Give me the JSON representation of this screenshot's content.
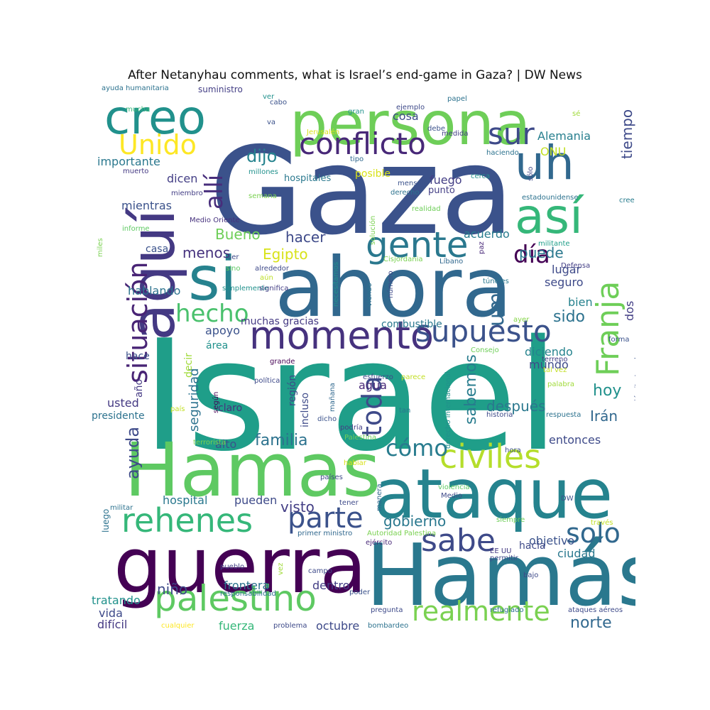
{
  "title": "After Netanyhau comments, what is Israel’s end-game in Gaza? | DW News",
  "words": [
    {
      "text": "Israel",
      "color": "#1f9e89"
    },
    {
      "text": "Gaza",
      "color": "#3b528b"
    },
    {
      "text": "persona",
      "color": "#6ece58"
    },
    {
      "text": "creo",
      "color": "#21918c"
    },
    {
      "text": "uh",
      "color": "#31688e"
    },
    {
      "text": "así",
      "color": "#35b779"
    },
    {
      "text": "ahora",
      "color": "#31688e"
    },
    {
      "text": "si",
      "color": "#26828e"
    },
    {
      "text": "aquí",
      "color": "#443983"
    },
    {
      "text": "Hamas",
      "color": "#5ec962"
    },
    {
      "text": "ataque",
      "color": "#25838e"
    },
    {
      "text": "Hamás",
      "color": "#2a788e"
    },
    {
      "text": "guerra",
      "color": "#440154"
    },
    {
      "text": "momento",
      "color": "#46327e"
    },
    {
      "text": "supuesto",
      "color": "#3b528b"
    },
    {
      "text": "gente",
      "color": "#2a788e"
    },
    {
      "text": "conflicto",
      "color": "#482878"
    },
    {
      "text": "sur",
      "color": "#3e4a89"
    },
    {
      "text": "Unido",
      "color": "#fde725"
    },
    {
      "text": "situación",
      "color": "#482475"
    },
    {
      "text": "Franja",
      "color": "#6ece58"
    },
    {
      "text": "rehenes",
      "color": "#35b779"
    },
    {
      "text": "palestino",
      "color": "#5ec962"
    },
    {
      "text": "civiles",
      "color": "#b5de2b"
    },
    {
      "text": "realmente",
      "color": "#7ad151"
    },
    {
      "text": "parte",
      "color": "#3b528b"
    },
    {
      "text": "sabe",
      "color": "#3e4a89"
    },
    {
      "text": "solo",
      "color": "#31688e"
    },
    {
      "text": "hecho",
      "color": "#4ac16d"
    },
    {
      "text": "día",
      "color": "#440154"
    },
    {
      "text": "toda",
      "color": "#3e4a89"
    },
    {
      "text": "cómo",
      "color": "#287c8e"
    },
    {
      "text": "allí",
      "color": "#472d7b"
    },
    {
      "text": "um",
      "color": "#31688e"
    },
    {
      "text": "dijo",
      "color": "#25838e"
    },
    {
      "text": "tiempo",
      "color": "#3e4a89"
    },
    {
      "text": "todavía",
      "color": "#472d7b"
    },
    {
      "text": "Alemania",
      "color": "#277f8e"
    },
    {
      "text": "ONU",
      "color": "#c2df23"
    },
    {
      "text": "importante",
      "color": "#2a788e"
    },
    {
      "text": "dicen",
      "color": "#433e85"
    },
    {
      "text": "mientras",
      "color": "#3b528b"
    },
    {
      "text": "Bueno",
      "color": "#6ece58"
    },
    {
      "text": "hacer",
      "color": "#3e4a89"
    },
    {
      "text": "menos",
      "color": "#46327e"
    },
    {
      "text": "Egipto",
      "color": "#d8e219"
    },
    {
      "text": "casa",
      "color": "#3b528b"
    },
    {
      "text": "acuerdo",
      "color": "#287c8e"
    },
    {
      "text": "puede",
      "color": "#2a788e"
    },
    {
      "text": "fuego",
      "color": "#433e85"
    },
    {
      "text": "posible",
      "color": "#d8e219"
    },
    {
      "text": "cosa",
      "color": "#3e4a89"
    },
    {
      "text": "hospitales",
      "color": "#2a788e"
    },
    {
      "text": "punto",
      "color": "#433e85"
    },
    {
      "text": "hablando",
      "color": "#2c728e"
    },
    {
      "text": "seguridad",
      "color": "#2c728e"
    },
    {
      "text": "muchas gracias",
      "color": "#443983"
    },
    {
      "text": "combustible",
      "color": "#2a788e"
    },
    {
      "text": "apoyo",
      "color": "#3b528b"
    },
    {
      "text": "área",
      "color": "#21918c"
    },
    {
      "text": "lugar",
      "color": "#3e4a89"
    },
    {
      "text": "seguro",
      "color": "#3e4a89"
    },
    {
      "text": "bien",
      "color": "#26828e"
    },
    {
      "text": "sido",
      "color": "#2c728e"
    },
    {
      "text": "dos",
      "color": "#433e85"
    },
    {
      "text": "diciendo",
      "color": "#25838e"
    },
    {
      "text": "mundo",
      "color": "#3e4a89"
    },
    {
      "text": "hoy",
      "color": "#21918c"
    },
    {
      "text": "sabemos",
      "color": "#287c8e"
    },
    {
      "text": "después",
      "color": "#2a788e"
    },
    {
      "text": "Irán",
      "color": "#31688e"
    },
    {
      "text": "ayuda",
      "color": "#3e4a89"
    },
    {
      "text": "familia",
      "color": "#2c728e"
    },
    {
      "text": "alto",
      "color": "#3b528b"
    },
    {
      "text": "visto",
      "color": "#433e85"
    },
    {
      "text": "gobierno",
      "color": "#2a788e"
    },
    {
      "text": "objetivo",
      "color": "#3b528b"
    },
    {
      "text": "hacia",
      "color": "#3e4a89"
    },
    {
      "text": "ciudad",
      "color": "#2a788e"
    },
    {
      "text": "entonces",
      "color": "#3e4a89"
    },
    {
      "text": "hospital",
      "color": "#2a788e"
    },
    {
      "text": "pueden",
      "color": "#3e4a89"
    },
    {
      "text": "niño",
      "color": "#3e4a89"
    },
    {
      "text": "frontera",
      "color": "#2c728e"
    },
    {
      "text": "dentro",
      "color": "#433e85"
    },
    {
      "text": "tratando",
      "color": "#21918c"
    },
    {
      "text": "vida",
      "color": "#3e4a89"
    },
    {
      "text": "difícil",
      "color": "#443983"
    },
    {
      "text": "fuerza",
      "color": "#35b779"
    },
    {
      "text": "octubre",
      "color": "#3e4a89"
    },
    {
      "text": "norte",
      "color": "#31688e"
    },
    {
      "text": "agua",
      "color": "#482878"
    },
    {
      "text": "claro",
      "color": "#46327e"
    },
    {
      "text": "usted",
      "color": "#443983"
    },
    {
      "text": "presidente",
      "color": "#2c728e"
    },
    {
      "text": "hace",
      "color": "#3b528b"
    },
    {
      "text": "decir",
      "color": "#a0da39"
    },
    {
      "text": "año",
      "color": "#443983"
    },
    {
      "text": "región",
      "color": "#3e4a89"
    },
    {
      "text": "incluso",
      "color": "#3e4a89"
    },
    {
      "text": "quiero decir",
      "color": "#c2df23"
    },
    {
      "text": "luego",
      "color": "#2c728e"
    },
    {
      "text": "ayuda humanitaria",
      "color": "#2c728e"
    },
    {
      "text": "suministro",
      "color": "#433e85"
    },
    {
      "text": "mucha",
      "color": "#35b779"
    },
    {
      "text": "muerto",
      "color": "#443983"
    },
    {
      "text": "miembro",
      "color": "#433e85"
    },
    {
      "text": "Medio Oriente",
      "color": "#46327e"
    },
    {
      "text": "informe",
      "color": "#5ec962"
    },
    {
      "text": "millones",
      "color": "#21918c"
    },
    {
      "text": "semana",
      "color": "#7ad151"
    },
    {
      "text": "solución",
      "color": "#7ad151"
    },
    {
      "text": "mensaje",
      "color": "#3b528b"
    },
    {
      "text": "derecho",
      "color": "#2c728e"
    },
    {
      "text": "realidad",
      "color": "#6ece58"
    },
    {
      "text": "tipo",
      "color": "#31688e"
    },
    {
      "text": "cerca",
      "color": "#21918c"
    },
    {
      "text": "sólo",
      "color": "#3e4a89"
    },
    {
      "text": "estadounidense",
      "color": "#2c728e"
    },
    {
      "text": "cree",
      "color": "#287c8e"
    },
    {
      "text": "militante",
      "color": "#1f9e89"
    },
    {
      "text": "paz",
      "color": "#482878"
    },
    {
      "text": "Líbano",
      "color": "#31688e"
    },
    {
      "text": "Cisjordania",
      "color": "#7ad151"
    },
    {
      "text": "Defensa",
      "color": "#433e85"
    },
    {
      "text": "túneles",
      "color": "#2a788e"
    },
    {
      "text": "ayer",
      "color": "#86d549"
    },
    {
      "text": "forma",
      "color": "#3b528b"
    },
    {
      "text": "ejército Israel",
      "color": "#3b528b"
    },
    {
      "text": "tal vez",
      "color": "#c2df23"
    },
    {
      "text": "palabra",
      "color": "#a0da39"
    },
    {
      "text": "terreno",
      "color": "#433e85"
    },
    {
      "text": "historia",
      "color": "#3e4a89"
    },
    {
      "text": "respuesta",
      "color": "#2c728e"
    },
    {
      "text": "necesitamos",
      "color": "#21918c"
    },
    {
      "text": "viendo",
      "color": "#2c728e"
    },
    {
      "text": "número",
      "color": "#3e4a89"
    },
    {
      "text": "ser",
      "color": "#3e4a89"
    },
    {
      "text": "sino",
      "color": "#5ec962"
    },
    {
      "text": "alrededor",
      "color": "#3e4a89"
    },
    {
      "text": "aún",
      "color": "#bddf26"
    },
    {
      "text": "simplemente",
      "color": "#21918c"
    },
    {
      "text": "significa",
      "color": "#433e85"
    },
    {
      "text": "miles",
      "color": "#7ad151"
    },
    {
      "text": "Consejo",
      "color": "#6ece58"
    },
    {
      "text": "grande",
      "color": "#440154"
    },
    {
      "text": "esfuerzo",
      "color": "#3e4a89"
    },
    {
      "text": "parece",
      "color": "#c2df23"
    },
    {
      "text": "derecho internacional",
      "color": "#21918c"
    },
    {
      "text": "política",
      "color": "#3e4a89"
    },
    {
      "text": "según",
      "color": "#440154"
    },
    {
      "text": "país",
      "color": "#c2df23"
    },
    {
      "text": "mañana",
      "color": "#31688e"
    },
    {
      "text": "tan",
      "color": "#2a788e"
    },
    {
      "text": "dicho",
      "color": "#3b528b"
    },
    {
      "text": "podría",
      "color": "#433e85"
    },
    {
      "text": "Palestina",
      "color": "#6ece58"
    },
    {
      "text": "terrorista",
      "color": "#7ad151"
    },
    {
      "text": "hora",
      "color": "#3b528b"
    },
    {
      "text": "habiar",
      "color": "#d8e219"
    },
    {
      "text": "países",
      "color": "#3e4a89"
    },
    {
      "text": "violencia",
      "color": "#5ec962"
    },
    {
      "text": "Medio",
      "color": "#3e4a89"
    },
    {
      "text": "DW",
      "color": "#3b528b"
    },
    {
      "text": "militar",
      "color": "#2c728e"
    },
    {
      "text": "tener",
      "color": "#3e4a89"
    },
    {
      "text": "manera",
      "color": "#31688e"
    },
    {
      "text": "primer ministro",
      "color": "#31688e"
    },
    {
      "text": "Autoridad Palestina",
      "color": "#7ad151"
    },
    {
      "text": "siempre",
      "color": "#6ece58"
    },
    {
      "text": "través",
      "color": "#c2df23"
    },
    {
      "text": "ejército",
      "color": "#482878"
    },
    {
      "text": "EE UU",
      "color": "#443983"
    },
    {
      "text": "permitir",
      "color": "#3e4a89"
    },
    {
      "text": "pueblo",
      "color": "#433e85"
    },
    {
      "text": "vez",
      "color": "#a0da39"
    },
    {
      "text": "campo",
      "color": "#3e4a89"
    },
    {
      "text": "bajo",
      "color": "#3e4a89"
    },
    {
      "text": "grupo",
      "color": "#3b528b"
    },
    {
      "text": "responsabilidad",
      "color": "#2c728e"
    },
    {
      "text": "poder",
      "color": "#3b528b"
    },
    {
      "text": "pregunta",
      "color": "#3e4a89"
    },
    {
      "text": "refugiado",
      "color": "#2c728e"
    },
    {
      "text": "ataques aéreos",
      "color": "#3e4a89"
    },
    {
      "text": "cualquier",
      "color": "#fde725"
    },
    {
      "text": "problema",
      "color": "#3e4a89"
    },
    {
      "text": "bombardeo",
      "color": "#2c728e"
    },
    {
      "text": "papel",
      "color": "#2c728e"
    },
    {
      "text": "gran",
      "color": "#21918c"
    },
    {
      "text": "ejemplo",
      "color": "#3e4a89"
    },
    {
      "text": "debe",
      "color": "#3b528b"
    },
    {
      "text": "medida",
      "color": "#433e85"
    },
    {
      "text": "Jerusalén",
      "color": "#d8e219"
    },
    {
      "text": "haciendo",
      "color": "#2c728e"
    },
    {
      "text": "sé",
      "color": "#a0da39"
    },
    {
      "text": "ver",
      "color": "#21918c"
    },
    {
      "text": "cabo",
      "color": "#3b528b"
    },
    {
      "text": "va",
      "color": "#3b528b"
    }
  ]
}
